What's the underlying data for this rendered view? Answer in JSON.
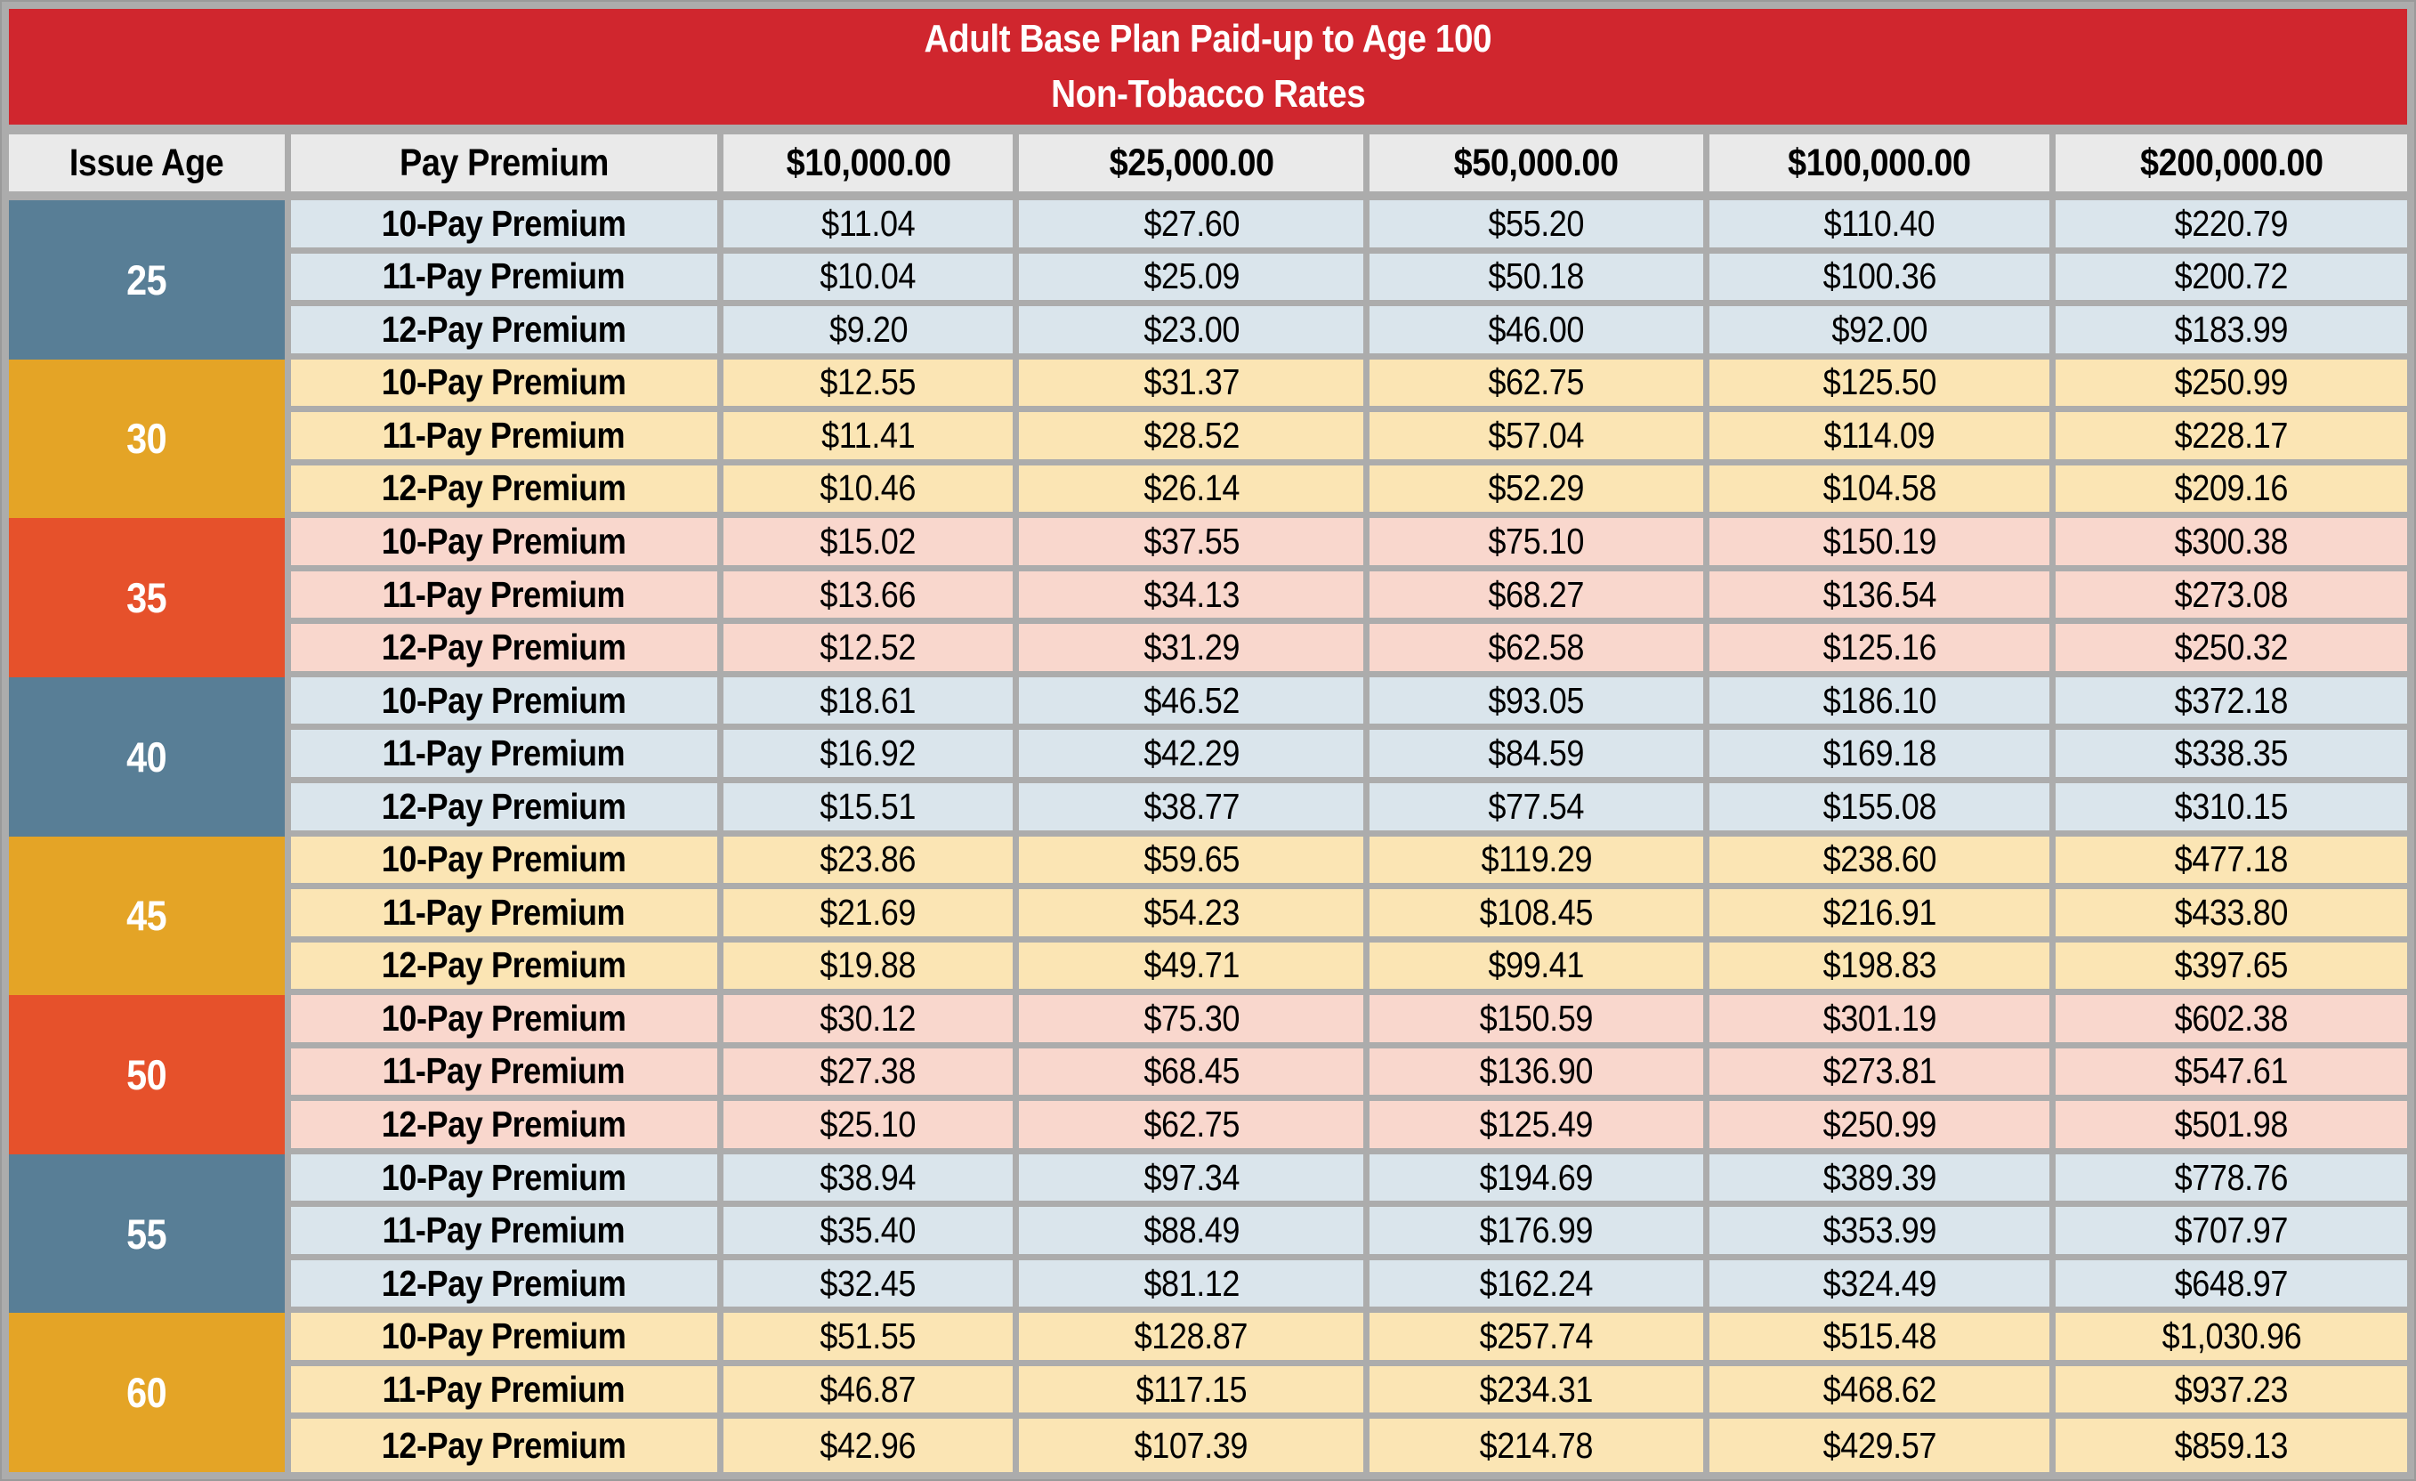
{
  "title": {
    "line1": "Adult Base Plan Paid-up to Age 100",
    "line2": "Non-Tobacco Rates"
  },
  "columns": [
    "Issue Age",
    "Pay Premium",
    "$10,000.00",
    "$25,000.00",
    "$50,000.00",
    "$100,000.00",
    "$200,000.00"
  ],
  "groups": [
    {
      "age": "25",
      "theme": "blue",
      "rows": [
        {
          "label": "10-Pay Premium",
          "values": [
            "$11.04",
            "$27.60",
            "$55.20",
            "$110.40",
            "$220.79"
          ]
        },
        {
          "label": "11-Pay Premium",
          "values": [
            "$10.04",
            "$25.09",
            "$50.18",
            "$100.36",
            "$200.72"
          ]
        },
        {
          "label": "12-Pay Premium",
          "values": [
            "$9.20",
            "$23.00",
            "$46.00",
            "$92.00",
            "$183.99"
          ]
        }
      ]
    },
    {
      "age": "30",
      "theme": "amber",
      "rows": [
        {
          "label": "10-Pay Premium",
          "values": [
            "$12.55",
            "$31.37",
            "$62.75",
            "$125.50",
            "$250.99"
          ]
        },
        {
          "label": "11-Pay Premium",
          "values": [
            "$11.41",
            "$28.52",
            "$57.04",
            "$114.09",
            "$228.17"
          ]
        },
        {
          "label": "12-Pay Premium",
          "values": [
            "$10.46",
            "$26.14",
            "$52.29",
            "$104.58",
            "$209.16"
          ]
        }
      ]
    },
    {
      "age": "35",
      "theme": "coral",
      "rows": [
        {
          "label": "10-Pay Premium",
          "values": [
            "$15.02",
            "$37.55",
            "$75.10",
            "$150.19",
            "$300.38"
          ]
        },
        {
          "label": "11-Pay Premium",
          "values": [
            "$13.66",
            "$34.13",
            "$68.27",
            "$136.54",
            "$273.08"
          ]
        },
        {
          "label": "12-Pay Premium",
          "values": [
            "$12.52",
            "$31.29",
            "$62.58",
            "$125.16",
            "$250.32"
          ]
        }
      ]
    },
    {
      "age": "40",
      "theme": "blue",
      "rows": [
        {
          "label": "10-Pay Premium",
          "values": [
            "$18.61",
            "$46.52",
            "$93.05",
            "$186.10",
            "$372.18"
          ]
        },
        {
          "label": "11-Pay Premium",
          "values": [
            "$16.92",
            "$42.29",
            "$84.59",
            "$169.18",
            "$338.35"
          ]
        },
        {
          "label": "12-Pay Premium",
          "values": [
            "$15.51",
            "$38.77",
            "$77.54",
            "$155.08",
            "$310.15"
          ]
        }
      ]
    },
    {
      "age": "45",
      "theme": "amber",
      "rows": [
        {
          "label": "10-Pay Premium",
          "values": [
            "$23.86",
            "$59.65",
            "$119.29",
            "$238.60",
            "$477.18"
          ]
        },
        {
          "label": "11-Pay Premium",
          "values": [
            "$21.69",
            "$54.23",
            "$108.45",
            "$216.91",
            "$433.80"
          ]
        },
        {
          "label": "12-Pay Premium",
          "values": [
            "$19.88",
            "$49.71",
            "$99.41",
            "$198.83",
            "$397.65"
          ]
        }
      ]
    },
    {
      "age": "50",
      "theme": "coral",
      "rows": [
        {
          "label": "10-Pay Premium",
          "values": [
            "$30.12",
            "$75.30",
            "$150.59",
            "$301.19",
            "$602.38"
          ]
        },
        {
          "label": "11-Pay Premium",
          "values": [
            "$27.38",
            "$68.45",
            "$136.90",
            "$273.81",
            "$547.61"
          ]
        },
        {
          "label": "12-Pay Premium",
          "values": [
            "$25.10",
            "$62.75",
            "$125.49",
            "$250.99",
            "$501.98"
          ]
        }
      ]
    },
    {
      "age": "55",
      "theme": "blue",
      "rows": [
        {
          "label": "10-Pay Premium",
          "values": [
            "$38.94",
            "$97.34",
            "$194.69",
            "$389.39",
            "$778.76"
          ]
        },
        {
          "label": "11-Pay Premium",
          "values": [
            "$35.40",
            "$88.49",
            "$176.99",
            "$353.99",
            "$707.97"
          ]
        },
        {
          "label": "12-Pay Premium",
          "values": [
            "$32.45",
            "$81.12",
            "$162.24",
            "$324.49",
            "$648.97"
          ]
        }
      ]
    },
    {
      "age": "60",
      "theme": "amber",
      "rows": [
        {
          "label": "10-Pay Premium",
          "values": [
            "$51.55",
            "$128.87",
            "$257.74",
            "$515.48",
            "$1,030.96"
          ]
        },
        {
          "label": "11-Pay Premium",
          "values": [
            "$46.87",
            "$117.15",
            "$234.31",
            "$468.62",
            "$937.23"
          ]
        },
        {
          "label": "12-Pay Premium",
          "values": [
            "$42.96",
            "$107.39",
            "$214.78",
            "$429.57",
            "$859.13"
          ]
        }
      ]
    }
  ],
  "colors": {
    "frame": "#ACACAC",
    "banner": "#D0262E",
    "header_bg": "#EAEAEA",
    "age_blue": "#587E96",
    "age_amber": "#E4A426",
    "age_coral": "#E6512B",
    "row_blue": "#DAE5EC",
    "row_amber": "#FBE5B4",
    "row_coral": "#F9D7CD",
    "title_text": "#FFFFFF",
    "body_text": "#000000"
  }
}
